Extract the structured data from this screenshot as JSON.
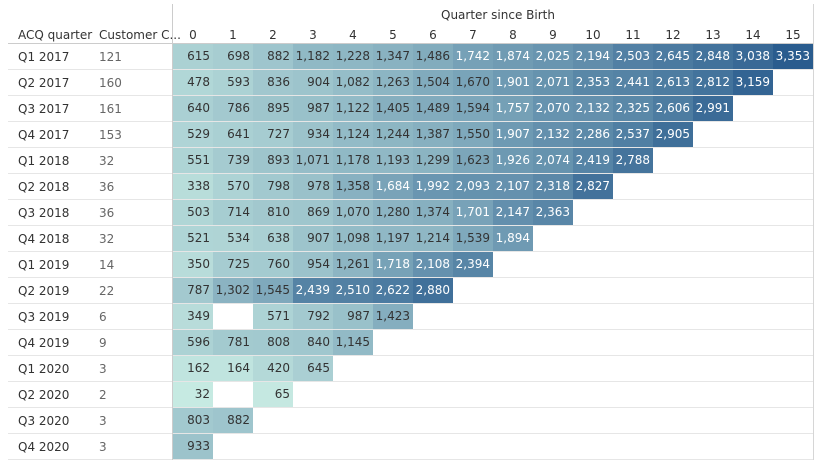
{
  "chart_data": {
    "type": "heatmap",
    "title": "",
    "column_axis_label": "Quarter since Birth",
    "row_header_1": "ACQ quarter",
    "row_header_2": "Customer C...",
    "columns": [
      "0",
      "1",
      "2",
      "3",
      "4",
      "5",
      "6",
      "7",
      "8",
      "9",
      "10",
      "11",
      "12",
      "13",
      "14",
      "15"
    ],
    "rows": [
      {
        "quarter": "Q1 2017",
        "customers": "121",
        "values": [
          "615",
          "698",
          "882",
          "1,182",
          "1,228",
          "1,347",
          "1,486",
          "1,742",
          "1,874",
          "2,025",
          "2,194",
          "2,503",
          "2,645",
          "2,848",
          "3,038",
          "3,353"
        ]
      },
      {
        "quarter": "Q2 2017",
        "customers": "160",
        "values": [
          "478",
          "593",
          "836",
          "904",
          "1,082",
          "1,263",
          "1,504",
          "1,670",
          "1,901",
          "2,071",
          "2,353",
          "2,441",
          "2,613",
          "2,812",
          "3,159"
        ]
      },
      {
        "quarter": "Q3 2017",
        "customers": "161",
        "values": [
          "640",
          "786",
          "895",
          "987",
          "1,122",
          "1,405",
          "1,489",
          "1,594",
          "1,757",
          "2,070",
          "2,132",
          "2,325",
          "2,606",
          "2,991"
        ]
      },
      {
        "quarter": "Q4 2017",
        "customers": "153",
        "values": [
          "529",
          "641",
          "727",
          "934",
          "1,124",
          "1,244",
          "1,387",
          "1,550",
          "1,907",
          "2,132",
          "2,286",
          "2,537",
          "2,905"
        ]
      },
      {
        "quarter": "Q1 2018",
        "customers": "32",
        "values": [
          "551",
          "739",
          "893",
          "1,071",
          "1,178",
          "1,193",
          "1,299",
          "1,623",
          "1,926",
          "2,074",
          "2,419",
          "2,788"
        ]
      },
      {
        "quarter": "Q2 2018",
        "customers": "36",
        "values": [
          "338",
          "570",
          "798",
          "978",
          "1,358",
          "1,684",
          "1,992",
          "2,093",
          "2,107",
          "2,318",
          "2,827"
        ]
      },
      {
        "quarter": "Q3 2018",
        "customers": "36",
        "values": [
          "503",
          "714",
          "810",
          "869",
          "1,070",
          "1,280",
          "1,374",
          "1,701",
          "2,147",
          "2,363"
        ]
      },
      {
        "quarter": "Q4 2018",
        "customers": "32",
        "values": [
          "521",
          "534",
          "638",
          "907",
          "1,098",
          "1,197",
          "1,214",
          "1,539",
          "1,894"
        ]
      },
      {
        "quarter": "Q1 2019",
        "customers": "14",
        "values": [
          "350",
          "725",
          "760",
          "954",
          "1,261",
          "1,718",
          "2,108",
          "2,394"
        ]
      },
      {
        "quarter": "Q2 2019",
        "customers": "22",
        "values": [
          "787",
          "1,302",
          "1,545",
          "2,439",
          "2,510",
          "2,622",
          "2,880"
        ]
      },
      {
        "quarter": "Q3 2019",
        "customers": "6",
        "values": [
          "349",
          null,
          "571",
          "792",
          "987",
          "1,423"
        ]
      },
      {
        "quarter": "Q4 2019",
        "customers": "9",
        "values": [
          "596",
          "781",
          "808",
          "840",
          "1,145"
        ]
      },
      {
        "quarter": "Q1 2020",
        "customers": "3",
        "values": [
          "162",
          "164",
          "420",
          "645"
        ]
      },
      {
        "quarter": "Q2 2020",
        "customers": "2",
        "values": [
          "32",
          null,
          "65"
        ]
      },
      {
        "quarter": "Q3 2020",
        "customers": "3",
        "values": [
          "803",
          "882"
        ]
      },
      {
        "quarter": "Q4 2020",
        "customers": "3",
        "values": [
          "933"
        ]
      }
    ],
    "color_range": [
      "#c8ebe3",
      "#2a5c8e"
    ],
    "value_range": [
      0,
      3353
    ]
  }
}
